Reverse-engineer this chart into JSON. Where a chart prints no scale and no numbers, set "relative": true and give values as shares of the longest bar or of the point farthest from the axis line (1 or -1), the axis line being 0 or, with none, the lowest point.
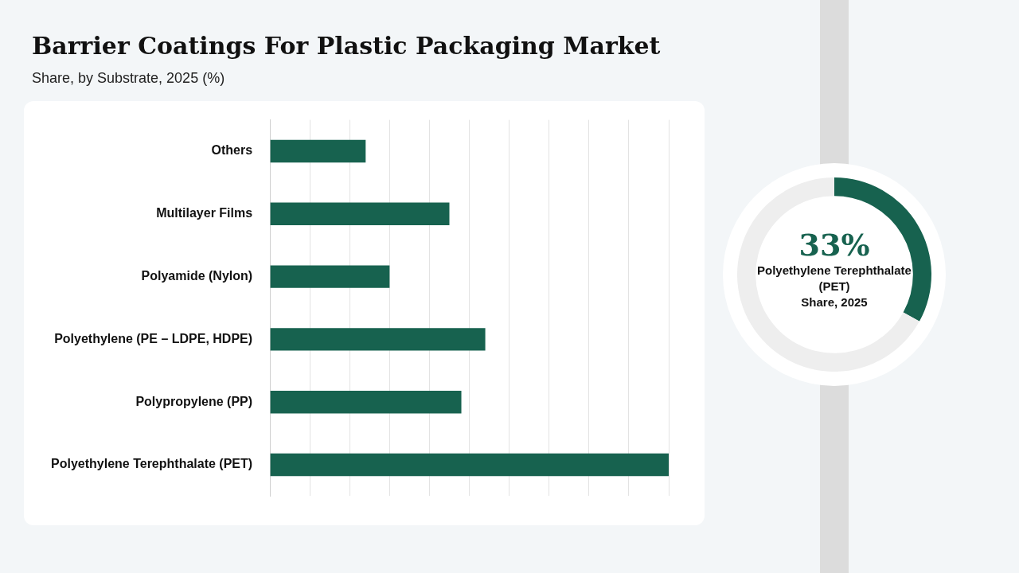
{
  "chart_data": [
    {
      "type": "bar",
      "title": "Barrier Coatings For Plastic Packaging Market",
      "subtitle": "Share, by Substrate, 2025 (%)",
      "orientation": "horizontal",
      "relative": true,
      "grid": "x",
      "color": "#17624f",
      "categories": [
        "Others",
        "Multilayer Films",
        "Polyamide (Nylon)",
        "Polyethylene (PE – LDPE, HDPE)",
        "Polypropylene (PP)",
        "Polyethylene Terephthalate (PET)"
      ],
      "values": [
        0.24,
        0.45,
        0.3,
        0.54,
        0.48,
        1
      ]
    },
    {
      "type": "donut",
      "categories": [
        "Polyethylene Terephthalate (PET)",
        null
      ],
      "values": [
        33,
        67
      ],
      "colors": [
        "#17624f",
        "#eeeeee"
      ],
      "value_labels": [
        "33%",
        null
      ],
      "annotations": [
        "Share, 2025"
      ]
    }
  ]
}
